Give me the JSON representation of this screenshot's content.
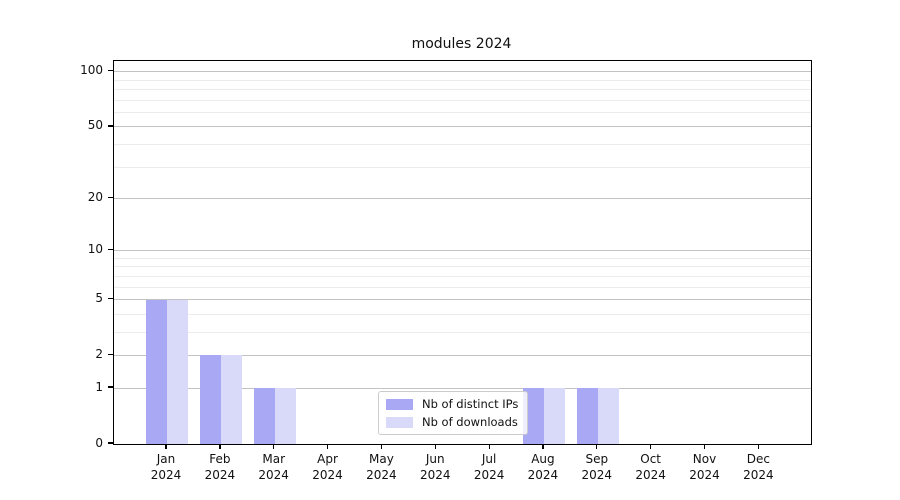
{
  "chart_data": {
    "type": "bar",
    "title": "modules 2024",
    "categories": [
      "Jan 2024",
      "Feb 2024",
      "Mar 2024",
      "Apr 2024",
      "May 2024",
      "Jun 2024",
      "Jul 2024",
      "Aug 2024",
      "Sep 2024",
      "Oct 2024",
      "Nov 2024",
      "Dec 2024"
    ],
    "series": [
      {
        "name": "Nb of distinct IPs",
        "color": "#a8a8f4",
        "values": [
          5,
          2,
          1,
          0,
          0,
          0,
          0,
          1,
          1,
          0,
          0,
          0
        ]
      },
      {
        "name": "Nb of downloads",
        "color": "#d9d9fa",
        "values": [
          5,
          2,
          1,
          0,
          0,
          0,
          0,
          1,
          1,
          0,
          0,
          0
        ]
      }
    ],
    "yticks": [
      0,
      1,
      2,
      5,
      10,
      20,
      50,
      100
    ],
    "ylim": [
      0,
      113
    ],
    "scale": "log1p",
    "xlabel": "",
    "ylabel": "",
    "grid": {
      "major_color": "#c3c3c3",
      "minor_color": "#ececec",
      "minor_values": [
        3,
        4,
        6,
        7,
        8,
        9,
        30,
        40,
        60,
        70,
        80,
        90
      ]
    },
    "legend_position": "lower-center"
  }
}
